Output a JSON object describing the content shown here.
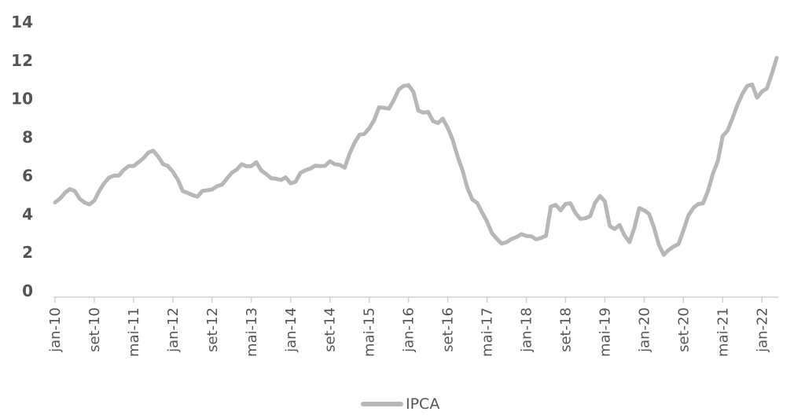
{
  "chart_data": {
    "type": "line",
    "title": "",
    "xlabel": "",
    "ylabel": "",
    "ylim": [
      0,
      14
    ],
    "yticks": [
      "0",
      "2",
      "4",
      "6",
      "8",
      "10",
      "12",
      "14"
    ],
    "xtick_labels": [
      "jan-10",
      "set-10",
      "mai-11",
      "jan-12",
      "set-12",
      "mai-13",
      "jan-14",
      "set-14",
      "mai-15",
      "jan-16",
      "set-16",
      "mai-17",
      "jan-18",
      "set-18",
      "mai-19",
      "jan-20",
      "set-20",
      "mai-21",
      "jan-22"
    ],
    "grid": false,
    "legend": "bottom-center",
    "series": [
      {
        "name": "IPCA",
        "color": "#b7b7b7",
        "start": "jan-10",
        "values": [
          4.6,
          4.8,
          5.1,
          5.3,
          5.2,
          4.8,
          4.6,
          4.5,
          4.7,
          5.2,
          5.6,
          5.9,
          6.0,
          6.0,
          6.3,
          6.5,
          6.5,
          6.7,
          6.9,
          7.2,
          7.3,
          7.0,
          6.6,
          6.5,
          6.2,
          5.8,
          5.2,
          5.1,
          4.99,
          4.9,
          5.2,
          5.24,
          5.28,
          5.45,
          5.53,
          5.84,
          6.15,
          6.31,
          6.59,
          6.49,
          6.5,
          6.7,
          6.27,
          6.09,
          5.86,
          5.84,
          5.77,
          5.91,
          5.59,
          5.68,
          6.15,
          6.28,
          6.37,
          6.52,
          6.5,
          6.51,
          6.75,
          6.59,
          6.56,
          6.41,
          7.14,
          7.7,
          8.13,
          8.17,
          8.47,
          8.89,
          9.56,
          9.53,
          9.49,
          9.93,
          10.48,
          10.67,
          10.71,
          10.36,
          9.39,
          9.28,
          9.32,
          8.84,
          8.74,
          8.97,
          8.48,
          7.87,
          6.99,
          6.29,
          5.35,
          4.76,
          4.57,
          4.08,
          3.6,
          3.0,
          2.71,
          2.46,
          2.54,
          2.7,
          2.8,
          2.95,
          2.86,
          2.84,
          2.68,
          2.76,
          2.86,
          4.39,
          4.48,
          4.19,
          4.53,
          4.56,
          4.05,
          3.75,
          3.78,
          3.89,
          4.58,
          4.94,
          4.66,
          3.37,
          3.22,
          3.43,
          2.89,
          2.54,
          3.27,
          4.31,
          4.19,
          4.01,
          3.3,
          2.4,
          1.88,
          2.13,
          2.31,
          2.44,
          3.14,
          3.92,
          4.31,
          4.52,
          4.56,
          5.2,
          6.1,
          6.76,
          8.06,
          8.35,
          8.99,
          9.68,
          10.25,
          10.67,
          10.74,
          10.06,
          10.38,
          10.54,
          11.3,
          12.13
        ]
      }
    ]
  }
}
